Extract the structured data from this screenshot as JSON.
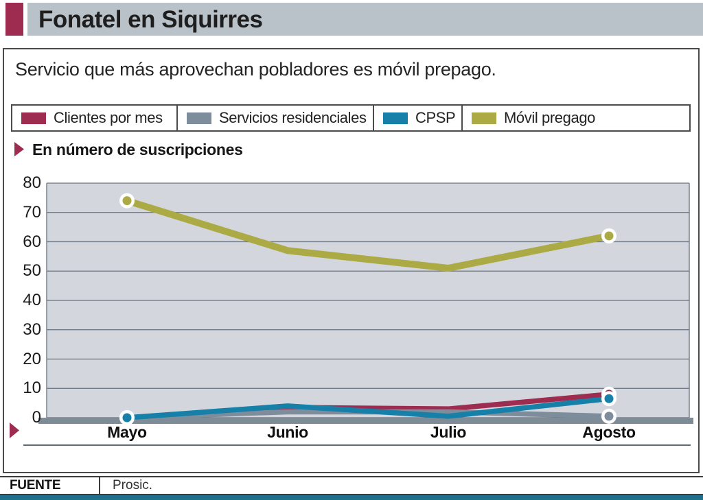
{
  "colors": {
    "accent": "#9e2b50",
    "header_bar_bg": "#b9c1c9",
    "plot_bg": "#d3d7dd",
    "gridline": "#67717e",
    "axis_band": "#7e8c98",
    "footer_bar": "#20708c"
  },
  "header": {
    "title": "Fonatel en Siquirres"
  },
  "subtitle": "Servicio que más aprovechan pobladores es móvil prepago.",
  "section_label": "En número de suscripciones",
  "legend": [
    {
      "label": "Clientes por mes",
      "color": "#9e2b50"
    },
    {
      "label": "Servicios residenciales",
      "color": "#7d8d9b"
    },
    {
      "label": "CPSP",
      "color": "#1680a8"
    },
    {
      "label": "Móvil pregago",
      "color": "#abaa45"
    }
  ],
  "chart_data": {
    "type": "line",
    "categories": [
      "Mayo",
      "Junio",
      "Julio",
      "Agosto"
    ],
    "series": [
      {
        "name": "Clientes por mes",
        "color": "#9e2b50",
        "values": [
          0,
          3.5,
          3,
          8
        ],
        "markers": [
          0,
          3
        ],
        "width": 7.5
      },
      {
        "name": "Servicios residenciales",
        "color": "#7d8d9b",
        "values": [
          0,
          2,
          2,
          0.5
        ],
        "markers": [
          0,
          3
        ],
        "width": 7.5
      },
      {
        "name": "CPSP",
        "color": "#1680a8",
        "values": [
          0,
          4,
          0.5,
          6.5
        ],
        "markers": [
          0,
          3
        ],
        "width": 7.5
      },
      {
        "name": "Móvil pregago",
        "color": "#abaa45",
        "values": [
          74,
          57,
          51,
          62
        ],
        "markers": [
          0,
          3
        ],
        "width": 10
      }
    ],
    "title": "En número de suscripciones",
    "xlabel": "",
    "ylabel": "",
    "ylim": [
      0,
      80
    ],
    "ytick_step": 10,
    "grid": true,
    "legend_position": "top"
  },
  "footer": {
    "source_label": "FUENTE",
    "source_value": "Prosic."
  }
}
